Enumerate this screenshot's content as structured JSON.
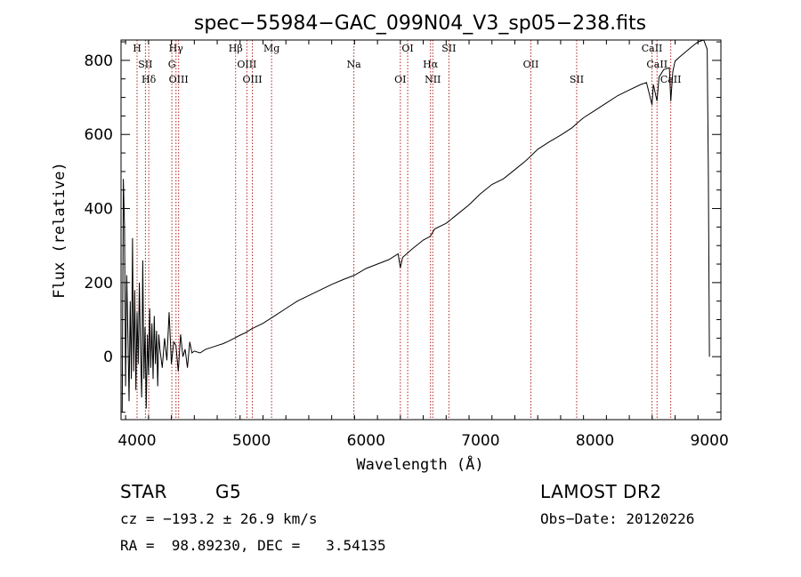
{
  "chart_data": {
    "type": "line",
    "title": "spec−55984−GAC_099N04_V3_sp05−238.fits",
    "xlabel": "Wavelength (Å)",
    "ylabel": "Flux (relative)",
    "xlim": [
      3860,
      9100
    ],
    "ylim": [
      -170,
      855
    ],
    "xticks": [
      4000,
      5000,
      6000,
      7000,
      8000,
      9000
    ],
    "yticks": [
      0,
      200,
      400,
      600,
      800
    ],
    "grid": false,
    "series": [
      {
        "x": [
          3870,
          3880,
          3890,
          3900,
          3910,
          3920,
          3930,
          3940,
          3950,
          3960,
          3970,
          3980,
          3990,
          4000,
          4010,
          4020,
          4030,
          4040,
          4050,
          4060,
          4070,
          4080,
          4090,
          4100,
          4110,
          4120,
          4130,
          4140,
          4150,
          4160,
          4170,
          4180,
          4190,
          4200,
          4220,
          4240,
          4260,
          4280,
          4300,
          4320,
          4340,
          4360,
          4380,
          4400,
          4420,
          4440,
          4460,
          4480,
          4500,
          4550,
          4600,
          4650,
          4700,
          4750,
          4800,
          4850,
          4900,
          4950,
          5000,
          5100,
          5200,
          5300,
          5400,
          5500,
          5600,
          5700,
          5800,
          5900,
          6000,
          6100,
          6200,
          6280,
          6300,
          6320,
          6400,
          6500,
          6562,
          6600,
          6700,
          6800,
          6900,
          7000,
          7100,
          7200,
          7300,
          7400,
          7500,
          7600,
          7700,
          7800,
          7850,
          7900,
          8000,
          8100,
          8200,
          8300,
          8400,
          8450,
          8498,
          8510,
          8542,
          8560,
          8600,
          8650,
          8662,
          8680,
          8700,
          8750,
          8800,
          8850,
          8900,
          8950,
          8980,
          8990,
          9000
        ],
        "values": [
          -150,
          480,
          350,
          -80,
          220,
          60,
          -120,
          150,
          -60,
          320,
          -40,
          180,
          -90,
          120,
          -20,
          200,
          10,
          -110,
          260,
          -60,
          80,
          -140,
          60,
          -50,
          130,
          -30,
          90,
          -60,
          110,
          -20,
          70,
          -80,
          60,
          20,
          -30,
          50,
          -10,
          120,
          -20,
          40,
          30,
          -40,
          60,
          0,
          20,
          -30,
          40,
          10,
          15,
          10,
          20,
          25,
          30,
          35,
          42,
          50,
          58,
          65,
          75,
          90,
          110,
          130,
          150,
          165,
          180,
          195,
          208,
          220,
          238,
          250,
          262,
          278,
          240,
          268,
          290,
          315,
          325,
          345,
          360,
          385,
          410,
          440,
          465,
          480,
          505,
          530,
          560,
          580,
          598,
          618,
          632,
          645,
          665,
          685,
          705,
          720,
          735,
          740,
          680,
          735,
          690,
          755,
          775,
          780,
          690,
          770,
          798,
          812,
          825,
          838,
          850,
          860,
          830,
          500,
          0
        ]
      }
    ],
    "spectral_lines": [
      {
        "name": "H",
        "x": 4000
      },
      {
        "name": "SII",
        "x": 4073
      },
      {
        "name": "Hδ",
        "x": 4102
      },
      {
        "name": "Hγ",
        "x": 4340
      },
      {
        "name": "G",
        "x": 4304
      },
      {
        "name": "OIII",
        "x": 4363
      },
      {
        "name": "Hβ",
        "x": 4861
      },
      {
        "name": "OIII",
        "x": 4959
      },
      {
        "name": "OIII",
        "x": 5007
      },
      {
        "name": "Mg",
        "x": 5175
      },
      {
        "name": "Na",
        "x": 5894
      },
      {
        "name": "OI",
        "x": 6300
      },
      {
        "name": "OI",
        "x": 6364
      },
      {
        "name": "Hα",
        "x": 6563
      },
      {
        "name": "NII",
        "x": 6583
      },
      {
        "name": "SII",
        "x": 6724
      },
      {
        "name": "OII",
        "x": 7440
      },
      {
        "name": "SII",
        "x": 7840
      },
      {
        "name": "CaII",
        "x": 8498
      },
      {
        "name": "CaII",
        "x": 8542
      },
      {
        "name": "CaII",
        "x": 8662
      }
    ]
  },
  "info": {
    "object_class": "STAR",
    "subclass": "G5",
    "survey": "LAMOST DR2",
    "redshift": "cz = −193.2 ± 26.9 km/s",
    "obs_date": "Obs−Date: 20120226",
    "coords": "RA =  98.89230, DEC =   3.54135"
  },
  "colors": {
    "spectrum": "#000000",
    "line_markers": "#b22222"
  }
}
